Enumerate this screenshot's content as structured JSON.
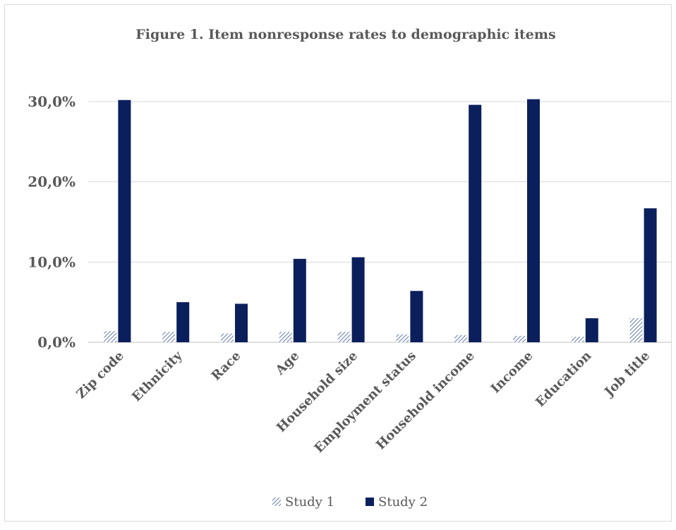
{
  "chart_data": {
    "type": "bar",
    "title": "Figure 1. Item nonresponse rates to demographic items",
    "categories": [
      "Zip code",
      "Ethnicity",
      "Race",
      "Age",
      "Household size",
      "Employment status",
      "Household income",
      "Income",
      "Education",
      "Job title"
    ],
    "series": [
      {
        "name": "Study 1",
        "values": [
          1.4,
          1.3,
          1.1,
          1.3,
          1.3,
          1.0,
          0.9,
          0.8,
          0.7,
          3.0
        ],
        "color": "#8ea0c7",
        "pattern": "diagonal-hatch"
      },
      {
        "name": "Study 2",
        "values": [
          30.2,
          5.0,
          4.8,
          10.4,
          10.6,
          6.4,
          29.6,
          30.3,
          3.0,
          16.7
        ],
        "color": "#0b1f5c",
        "pattern": "solid"
      }
    ],
    "yticks": [
      "0,0%",
      "10,0%",
      "20,0%",
      "30,0%"
    ],
    "ytick_values": [
      0,
      10,
      20,
      30
    ],
    "ylim": [
      0,
      30
    ],
    "grid": true,
    "legend_position": "bottom"
  }
}
